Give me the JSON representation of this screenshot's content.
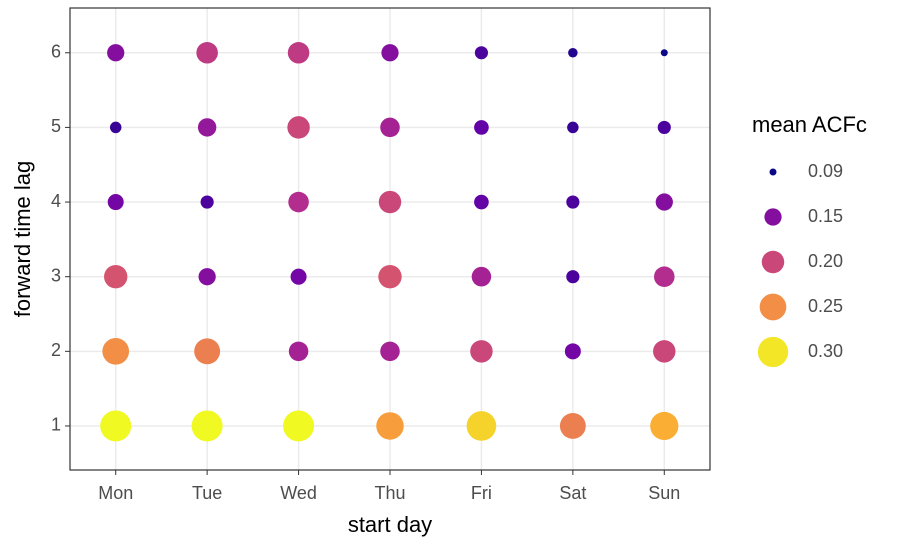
{
  "chart_data": {
    "type": "bubble",
    "xlabel": "start day",
    "ylabel": "forward time lag",
    "categories": [
      "Mon",
      "Tue",
      "Wed",
      "Thu",
      "Fri",
      "Sat",
      "Sun"
    ],
    "x": [
      "Mon",
      "Tue",
      "Wed",
      "Thu",
      "Fri",
      "Sat",
      "Sun",
      "Mon",
      "Tue",
      "Wed",
      "Thu",
      "Fri",
      "Sat",
      "Sun",
      "Mon",
      "Tue",
      "Wed",
      "Thu",
      "Fri",
      "Sat",
      "Sun",
      "Mon",
      "Tue",
      "Wed",
      "Thu",
      "Fri",
      "Sat",
      "Sun",
      "Mon",
      "Tue",
      "Wed",
      "Thu",
      "Fri",
      "Sat",
      "Sun",
      "Mon",
      "Tue",
      "Wed",
      "Thu",
      "Fri",
      "Sat",
      "Sun"
    ],
    "y": [
      1,
      1,
      1,
      1,
      1,
      1,
      1,
      2,
      2,
      2,
      2,
      2,
      2,
      2,
      3,
      3,
      3,
      3,
      3,
      3,
      3,
      4,
      4,
      4,
      4,
      4,
      4,
      4,
      5,
      5,
      5,
      5,
      5,
      5,
      5,
      6,
      6,
      6,
      6,
      6,
      6,
      6
    ],
    "values": [
      0.31,
      0.31,
      0.31,
      0.26,
      0.29,
      0.24,
      0.27,
      0.25,
      0.24,
      0.17,
      0.17,
      0.2,
      0.14,
      0.2,
      0.21,
      0.15,
      0.14,
      0.21,
      0.17,
      0.12,
      0.18,
      0.14,
      0.12,
      0.18,
      0.2,
      0.13,
      0.12,
      0.15,
      0.11,
      0.16,
      0.2,
      0.17,
      0.13,
      0.11,
      0.12,
      0.15,
      0.19,
      0.19,
      0.15,
      0.12,
      0.1,
      0.09
    ],
    "ylim": [
      0.41,
      6.6
    ],
    "yticks": [
      1,
      2,
      3,
      4,
      5,
      6
    ],
    "grid": true,
    "colorscale": [
      "#0d0887",
      "#6a00a8",
      "#b12a90",
      "#e16462",
      "#fca636",
      "#f0f921"
    ],
    "sizelim": [
      0.09,
      0.31
    ],
    "legend": {
      "title": "mean ACFc",
      "position": "right",
      "values": [
        0.09,
        0.15,
        {
          "value": 0.2,
          "label": "0.20"
        },
        0.25,
        {
          "value": 0.3,
          "label": "0.30"
        }
      ]
    }
  }
}
